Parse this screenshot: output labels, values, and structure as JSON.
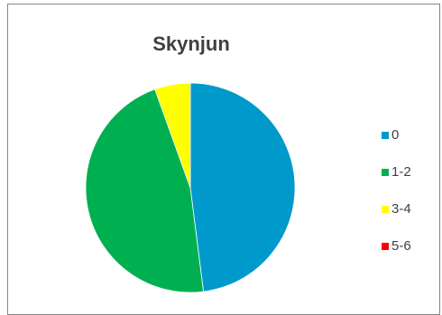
{
  "chart_data": {
    "type": "pie",
    "title": "Skynjun",
    "categories": [
      "0",
      "1-2",
      "3-4",
      "5-6"
    ],
    "values": [
      48,
      46.5,
      5.5,
      0
    ],
    "colors": [
      "#0099cc",
      "#00b050",
      "#ffff00",
      "#ff0000"
    ],
    "start_angle_deg": 0,
    "direction": "clockwise",
    "legend_position": "right",
    "data_labels": false
  }
}
